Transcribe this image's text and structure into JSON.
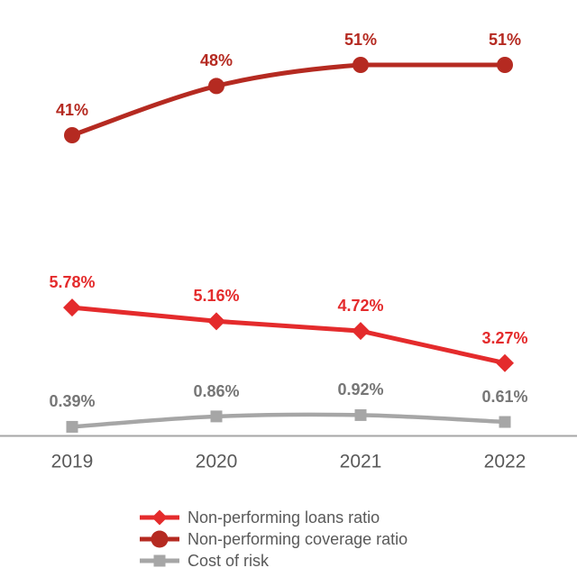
{
  "chart_data": {
    "type": "line",
    "categories": [
      "2019",
      "2020",
      "2021",
      "2022"
    ],
    "series": [
      {
        "name": "Non-performing loans ratio",
        "values": [
          5.78,
          5.16,
          4.72,
          3.27
        ],
        "labels": [
          "5.78%",
          "5.16%",
          "4.72%",
          "3.27%"
        ],
        "color": "#e42b2c",
        "label_color": "#e42b2c",
        "marker": "diamond",
        "axis": "primary",
        "smooth": false
      },
      {
        "name": "Non-performing coverage ratio",
        "values": [
          41,
          48,
          51,
          51
        ],
        "labels": [
          "41%",
          "48%",
          "51%",
          "51%"
        ],
        "color": "#b52a21",
        "label_color": "#b52a21",
        "marker": "circle",
        "axis": "secondary",
        "smooth": true
      },
      {
        "name": "Cost of risk",
        "values": [
          0.39,
          0.86,
          0.92,
          0.61
        ],
        "labels": [
          "0.39%",
          "0.86%",
          "0.92%",
          "0.61%"
        ],
        "color": "#a6a6a6",
        "label_color": "#767676",
        "marker": "square",
        "axis": "primary",
        "smooth": true
      }
    ],
    "title": "",
    "xlabel": "",
    "ylabel": "",
    "grid": false,
    "legend_position": "bottom",
    "axis_line_color": "#a6a6a6",
    "axis_text_color": "#595959"
  }
}
